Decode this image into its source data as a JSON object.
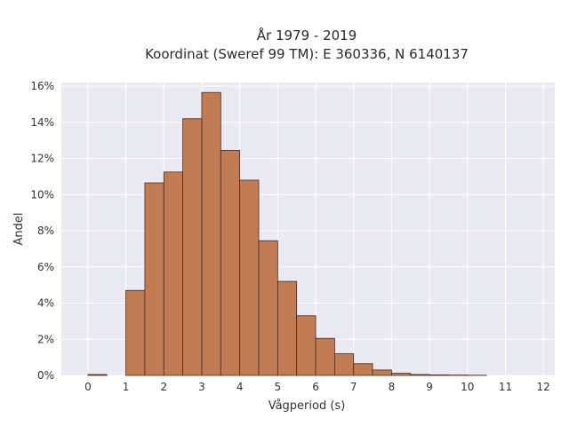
{
  "chart_data": {
    "type": "bar",
    "title_line1": "År 1979 - 2019",
    "title_line2": "Koordinat (Sweref 99 TM): E 360336, N 6140137",
    "xlabel": "Vågperiod (s)",
    "ylabel": "Andel",
    "xlim": [
      -0.7,
      12.3
    ],
    "ylim": [
      0,
      16.2
    ],
    "xticks": [
      0,
      1,
      2,
      3,
      4,
      5,
      6,
      7,
      8,
      9,
      10,
      11,
      12
    ],
    "xtick_labels": [
      "0",
      "1",
      "2",
      "3",
      "4",
      "5",
      "6",
      "7",
      "8",
      "9",
      "10",
      "11",
      "12"
    ],
    "yticks": [
      0,
      2,
      4,
      6,
      8,
      10,
      12,
      14,
      16
    ],
    "ytick_labels": [
      "0%",
      "2%",
      "4%",
      "6%",
      "8%",
      "10%",
      "12%",
      "14%",
      "16%"
    ],
    "bin_edges": [
      0,
      0.5,
      1,
      1.5,
      2,
      2.5,
      3,
      3.5,
      4,
      4.5,
      5,
      5.5,
      6,
      6.5,
      7,
      7.5,
      8,
      8.5,
      9,
      9.5,
      10,
      10.5
    ],
    "values": [
      0.05,
      0,
      4.7,
      10.65,
      11.25,
      14.2,
      15.65,
      12.45,
      10.8,
      7.45,
      5.2,
      3.3,
      2.05,
      1.2,
      0.65,
      0.3,
      0.12,
      0.05,
      0.03,
      0.02,
      0.01
    ],
    "grid": true,
    "colors": {
      "bar_fill": "#C27C54",
      "bar_stroke": "#4a2a1a",
      "plot_background": "#EAEAF2",
      "grid": "#ffffff"
    }
  }
}
